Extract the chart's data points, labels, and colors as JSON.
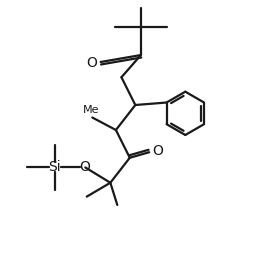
{
  "bg_color": "#ffffff",
  "line_color": "#1a1a1a",
  "line_width": 1.6,
  "font_size": 9.5,
  "figsize": [
    2.79,
    2.6
  ],
  "dpi": 100,
  "xlim": [
    0,
    10
  ],
  "ylim": [
    0,
    9.3
  ]
}
